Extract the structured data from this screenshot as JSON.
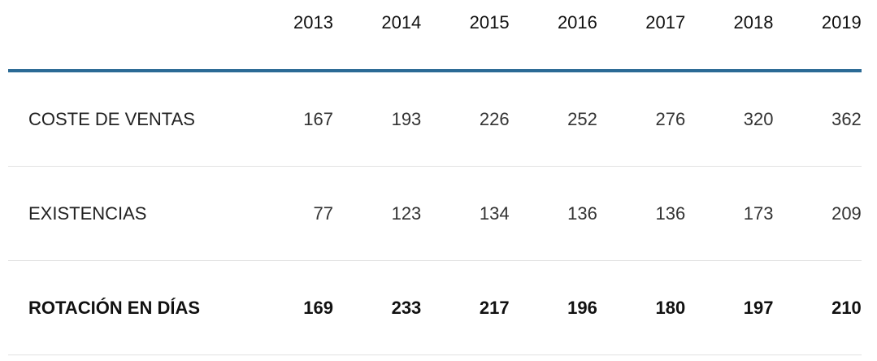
{
  "table": {
    "columns": [
      "2013",
      "2014",
      "2015",
      "2016",
      "2017",
      "2018",
      "2019"
    ],
    "rows": [
      {
        "label": "COSTE DE VENTAS",
        "values": [
          167,
          193,
          226,
          252,
          276,
          320,
          362
        ]
      },
      {
        "label": "EXISTENCIAS",
        "values": [
          77,
          123,
          134,
          136,
          136,
          173,
          209
        ]
      },
      {
        "label": "ROTACIÓN EN DÍAS",
        "values": [
          169,
          233,
          217,
          196,
          180,
          197,
          210
        ]
      }
    ]
  }
}
